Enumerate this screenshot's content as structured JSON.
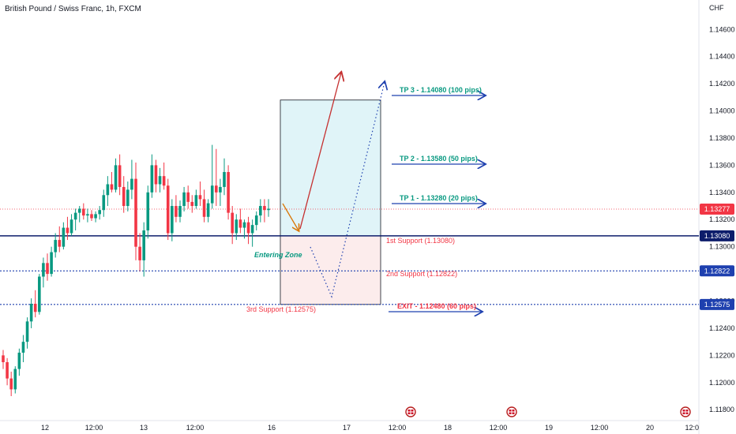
{
  "chart_data": {
    "type": "candlestick",
    "title": "British Pound / Swiss Franc, 1h, FXCM",
    "currency": "CHF",
    "y_ticks": [
      "1.14600",
      "1.14400",
      "1.14200",
      "1.14000",
      "1.13800",
      "1.13600",
      "1.13400",
      "1.13200",
      "1.13000",
      "1.12800",
      "1.12600",
      "1.12400",
      "1.12200",
      "1.12000",
      "1.11800"
    ],
    "x_ticks": [
      "12",
      "12:00",
      "13",
      "12:00",
      "16",
      "17",
      "12:00",
      "18",
      "12:00",
      "19",
      "12:00",
      "20",
      "12:0"
    ],
    "ylim": [
      1.1172,
      1.1477
    ],
    "last_price": "1.13277",
    "price_badges": [
      {
        "label": "1.13277",
        "value": 1.13277,
        "color": "#f23645"
      },
      {
        "label": "1.13080",
        "value": 1.1308,
        "color": "#0d1d6b"
      },
      {
        "label": "1.12822",
        "value": 1.12822,
        "color": "#1e40af"
      },
      {
        "label": "1.12575",
        "value": 1.12575,
        "color": "#1e40af"
      }
    ],
    "levels": [
      {
        "name": "1st Support",
        "value": 1.1308,
        "style": "solid"
      },
      {
        "name": "2nd Support",
        "value": 1.12822,
        "style": "dotted"
      },
      {
        "name": "3rd Support",
        "value": 1.12575,
        "style": "dotted"
      }
    ],
    "annotations": {
      "tp3": "TP 3 - 1.14080 (100 pips)",
      "tp2": "TP 2 - 1.13580 (50 pips)",
      "tp1": "TP 1 - 1.13280 (20 pips)",
      "support1": "1st Support  (1.13080)",
      "support2": "2nd Support (1.12822)",
      "support3": "3rd Support (1.12575)",
      "exit": "EXIT - 1.12480 (60 pips)",
      "entering_zone": "Entering Zone"
    },
    "trade_box": {
      "entry": 1.1308,
      "target": 1.1408,
      "stop": 1.12575
    },
    "colors": {
      "up": "#089981",
      "down": "#f23645",
      "target_fill": "#e0f4f8",
      "stop_fill": "#fcecec",
      "arrow_blue": "#1e40af",
      "arrow_red": "#c53030"
    },
    "candles": [
      [
        1.122,
        1.1224,
        1.121,
        1.1215
      ],
      [
        1.1215,
        1.1218,
        1.1198,
        1.1203
      ],
      [
        1.1203,
        1.1208,
        1.119,
        1.1195
      ],
      [
        1.1195,
        1.1212,
        1.1192,
        1.121
      ],
      [
        1.121,
        1.1225,
        1.1205,
        1.1222
      ],
      [
        1.1222,
        1.1235,
        1.1215,
        1.123
      ],
      [
        1.123,
        1.1248,
        1.1225,
        1.1245
      ],
      [
        1.1245,
        1.1262,
        1.124,
        1.1258
      ],
      [
        1.1258,
        1.1268,
        1.1248,
        1.1252
      ],
      [
        1.1252,
        1.128,
        1.125,
        1.1278
      ],
      [
        1.1278,
        1.1292,
        1.127,
        1.1288
      ],
      [
        1.1288,
        1.1295,
        1.1275,
        1.128
      ],
      [
        1.128,
        1.13,
        1.1278,
        1.1296
      ],
      [
        1.1296,
        1.131,
        1.1292,
        1.1305
      ],
      [
        1.1305,
        1.1315,
        1.1296,
        1.13
      ],
      [
        1.13,
        1.1318,
        1.1298,
        1.1314
      ],
      [
        1.1314,
        1.1322,
        1.1305,
        1.131
      ],
      [
        1.131,
        1.1324,
        1.1308,
        1.132
      ],
      [
        1.132,
        1.1328,
        1.1312,
        1.1325
      ],
      [
        1.1325,
        1.133,
        1.1318,
        1.1328
      ],
      [
        1.1328,
        1.1332,
        1.132,
        1.1323
      ],
      [
        1.1323,
        1.1328,
        1.1318,
        1.1324
      ],
      [
        1.1324,
        1.1327,
        1.1319,
        1.1321
      ],
      [
        1.1321,
        1.1326,
        1.1318,
        1.1324
      ],
      [
        1.1324,
        1.133,
        1.132,
        1.1327
      ],
      [
        1.1327,
        1.1342,
        1.1322,
        1.1338
      ],
      [
        1.1338,
        1.1352,
        1.133,
        1.1346
      ],
      [
        1.1346,
        1.1355,
        1.134,
        1.1342
      ],
      [
        1.1342,
        1.1365,
        1.134,
        1.136
      ],
      [
        1.136,
        1.1368,
        1.1338,
        1.1344
      ],
      [
        1.1344,
        1.1352,
        1.1325,
        1.133
      ],
      [
        1.133,
        1.1348,
        1.1326,
        1.1342
      ],
      [
        1.1342,
        1.1364,
        1.1335,
        1.135
      ],
      [
        1.135,
        1.1362,
        1.129,
        1.13
      ],
      [
        1.13,
        1.131,
        1.1282,
        1.129
      ],
      [
        1.129,
        1.1318,
        1.1278,
        1.1312
      ],
      [
        1.1312,
        1.1345,
        1.1306,
        1.134
      ],
      [
        1.134,
        1.1368,
        1.1336,
        1.136
      ],
      [
        1.136,
        1.1364,
        1.134,
        1.1346
      ],
      [
        1.1346,
        1.1358,
        1.134,
        1.1352
      ],
      [
        1.1352,
        1.1362,
        1.1342,
        1.1345
      ],
      [
        1.1345,
        1.135,
        1.1305,
        1.131
      ],
      [
        1.131,
        1.1335,
        1.1304,
        1.133
      ],
      [
        1.133,
        1.1338,
        1.1318,
        1.1322
      ],
      [
        1.1322,
        1.1334,
        1.1318,
        1.133
      ],
      [
        1.133,
        1.1344,
        1.1326,
        1.134
      ],
      [
        1.134,
        1.1345,
        1.1328,
        1.1333
      ],
      [
        1.1333,
        1.1338,
        1.1325,
        1.133
      ],
      [
        1.133,
        1.1342,
        1.1328,
        1.1338
      ],
      [
        1.1338,
        1.1348,
        1.133,
        1.1335
      ],
      [
        1.1335,
        1.1342,
        1.1318,
        1.1322
      ],
      [
        1.1322,
        1.1335,
        1.1318,
        1.1332
      ],
      [
        1.1332,
        1.1375,
        1.1328,
        1.1345
      ],
      [
        1.1345,
        1.1372,
        1.133,
        1.134
      ],
      [
        1.134,
        1.135,
        1.133,
        1.1344
      ],
      [
        1.1344,
        1.1365,
        1.1338,
        1.1355
      ],
      [
        1.1355,
        1.136,
        1.132,
        1.1325
      ],
      [
        1.1325,
        1.133,
        1.1302,
        1.131
      ],
      [
        1.131,
        1.1324,
        1.1305,
        1.132
      ],
      [
        1.132,
        1.1328,
        1.131,
        1.1314
      ],
      [
        1.1314,
        1.132,
        1.1306,
        1.1318
      ],
      [
        1.1318,
        1.1322,
        1.1302,
        1.131
      ],
      [
        1.131,
        1.132,
        1.13,
        1.1316
      ],
      [
        1.1316,
        1.1326,
        1.1312,
        1.1323
      ],
      [
        1.1323,
        1.1335,
        1.1318,
        1.133
      ],
      [
        1.133,
        1.1335,
        1.1318,
        1.1327
      ],
      [
        1.1327,
        1.1335,
        1.1322,
        1.1328
      ]
    ]
  }
}
